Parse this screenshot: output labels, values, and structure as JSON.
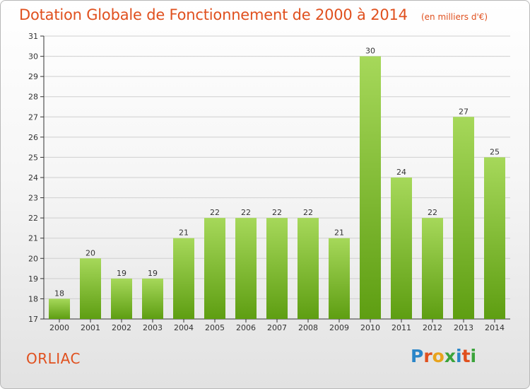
{
  "header": {
    "title": "Dotation Globale de Fonctionnement de 2000 à 2014",
    "units": "(en milliers d'€)"
  },
  "footer": {
    "commune": "ORLIAC",
    "brand_letters": [
      "P",
      "r",
      "o",
      "x",
      "i",
      "t",
      "i"
    ],
    "brand_colors": [
      "#2a86c8",
      "#e0501e",
      "#e8a31c",
      "#3aa33a",
      "#2a86c8",
      "#e0501e",
      "#3aa33a"
    ]
  },
  "colors": {
    "bar_light": "#a6d85a",
    "bar_dark": "#5e9e12",
    "title": "#e0501e",
    "axis": "#333333",
    "grid": "#cfcfcf"
  },
  "chart_data": {
    "type": "bar",
    "categories": [
      "2000",
      "2001",
      "2002",
      "2003",
      "2004",
      "2005",
      "2006",
      "2007",
      "2008",
      "2009",
      "2010",
      "2011",
      "2012",
      "2013",
      "2014"
    ],
    "values": [
      18,
      20,
      19,
      19,
      21,
      22,
      22,
      22,
      22,
      21,
      30,
      24,
      22,
      27,
      25
    ],
    "ylim": [
      17,
      31
    ],
    "yticks": [
      17,
      18,
      19,
      20,
      21,
      22,
      23,
      24,
      25,
      26,
      27,
      28,
      29,
      30,
      31
    ],
    "grid": true,
    "data_labels": true
  }
}
